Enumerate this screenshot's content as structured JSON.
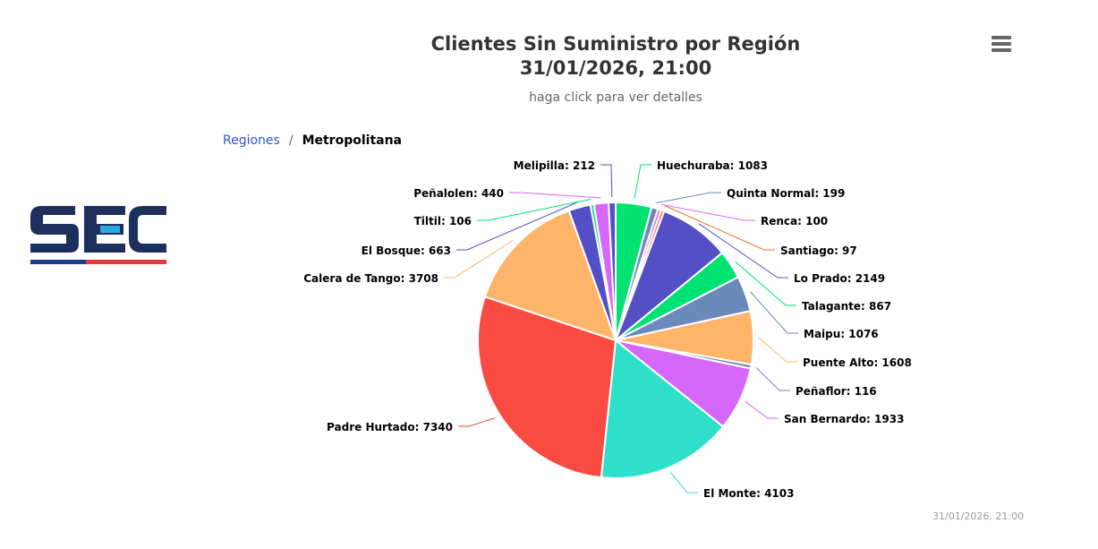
{
  "title": "Clientes Sin Suministro por Región",
  "title_line2": "31/01/2026, 21:00",
  "subtitle": "haga click para ver detalles",
  "breadcrumb": {
    "parent": "Regiones",
    "separator": "/",
    "current": "Metropolitana"
  },
  "logo_text": "SEC",
  "credits": "31/01/2026, 21:00",
  "menu_icon": "hamburger-menu-icon",
  "chart_data": {
    "type": "pie",
    "title": "Clientes Sin Suministro por Región",
    "slices": [
      {
        "name": "Huechuraba",
        "value": 1083,
        "color": "#00e272"
      },
      {
        "name": "Quinta Normal",
        "value": 199,
        "color": "#6b8abc"
      },
      {
        "name": "Renca",
        "value": 100,
        "color": "#d568fb"
      },
      {
        "name": "Santiago",
        "value": 97,
        "color": "#fe6a35"
      },
      {
        "name": "Lo Prado",
        "value": 2149,
        "color": "#544fc5"
      },
      {
        "name": "Talagante",
        "value": 867,
        "color": "#00e272"
      },
      {
        "name": "Maipu",
        "value": 1076,
        "color": "#6b8abc"
      },
      {
        "name": "Puente Alto",
        "value": 1608,
        "color": "#feb56a"
      },
      {
        "name": "Peñaflor",
        "value": 116,
        "color": "#6b8abc"
      },
      {
        "name": "San Bernardo",
        "value": 1933,
        "color": "#d568fb"
      },
      {
        "name": "El Monte",
        "value": 4103,
        "color": "#2ee0ca"
      },
      {
        "name": "Padre Hurtado",
        "value": 7340,
        "color": "#fa4b42"
      },
      {
        "name": "Calera de Tango",
        "value": 3708,
        "color": "#feb56a"
      },
      {
        "name": "El Bosque",
        "value": 663,
        "color": "#544fc5"
      },
      {
        "name": "Tiltil",
        "value": 106,
        "color": "#00e272"
      },
      {
        "name": "Peñalolen",
        "value": 440,
        "color": "#d568fb"
      },
      {
        "name": "Melipilla",
        "value": 212,
        "color": "#544fc5"
      }
    ]
  }
}
